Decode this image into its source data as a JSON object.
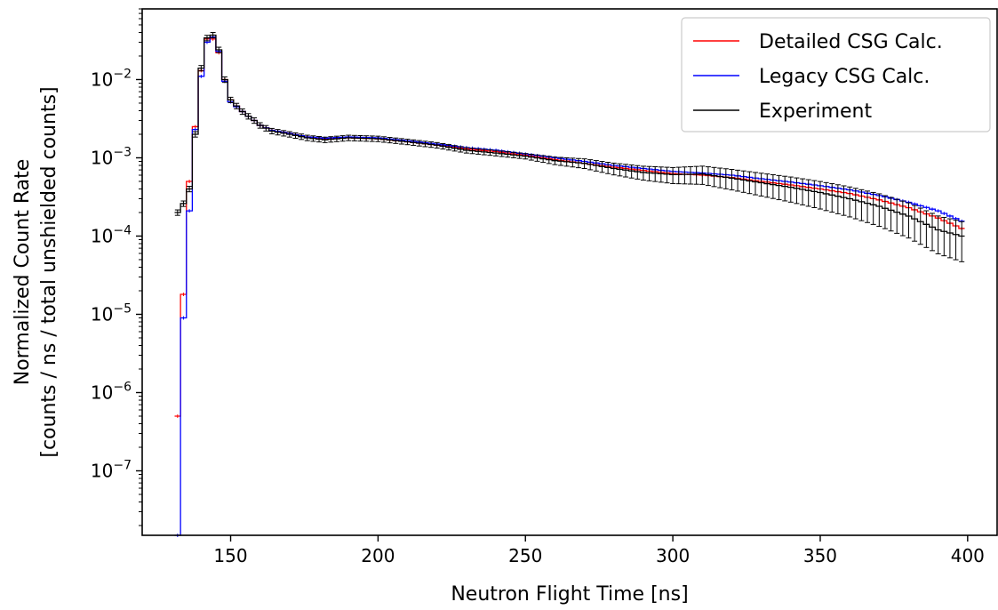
{
  "chart_data": {
    "type": "line",
    "title": "",
    "xlabel": "Neutron Flight Time [ns]",
    "ylabel": [
      "Normalized Count Rate",
      "[counts / ns / total unshielded counts]"
    ],
    "xlim": [
      120,
      410
    ],
    "ylim": [
      1.5e-08,
      0.08
    ],
    "yscale": "log",
    "grid": false,
    "legend_position": "top-right",
    "xticks": [
      150,
      200,
      250,
      300,
      350,
      400
    ],
    "yticks": [
      {
        "value": 1e-07,
        "mantissa": "10",
        "exp": "−7"
      },
      {
        "value": 1e-06,
        "mantissa": "10",
        "exp": "−6"
      },
      {
        "value": 1e-05,
        "mantissa": "10",
        "exp": "−5"
      },
      {
        "value": 0.0001,
        "mantissa": "10",
        "exp": "−4"
      },
      {
        "value": 0.001,
        "mantissa": "10",
        "exp": "−3"
      },
      {
        "value": 0.01,
        "mantissa": "10",
        "exp": "−2"
      }
    ],
    "bin_width": 2,
    "bins_start": 132,
    "bins_end": 398,
    "series": [
      {
        "name": "Detailed CSG Calc.",
        "color": "#ff0000",
        "style": "step",
        "points": [
          [
            132,
            5e-07
          ],
          [
            134,
            1.8e-05
          ],
          [
            136,
            0.0005
          ],
          [
            138,
            0.0025
          ],
          [
            140,
            0.013
          ],
          [
            142,
            0.033
          ],
          [
            144,
            0.033
          ],
          [
            146,
            0.022
          ],
          [
            148,
            0.01
          ],
          [
            150,
            0.0055
          ],
          [
            152,
            0.0046
          ],
          [
            154,
            0.0039
          ],
          [
            156,
            0.0034
          ],
          [
            158,
            0.003
          ],
          [
            160,
            0.0026
          ],
          [
            164,
            0.00225
          ],
          [
            170,
            0.00205
          ],
          [
            176,
            0.00185
          ],
          [
            182,
            0.00175
          ],
          [
            190,
            0.0018
          ],
          [
            200,
            0.00175
          ],
          [
            210,
            0.0016
          ],
          [
            220,
            0.00145
          ],
          [
            230,
            0.0013
          ],
          [
            240,
            0.0012
          ],
          [
            250,
            0.00108
          ],
          [
            260,
            0.00095
          ],
          [
            270,
            0.00085
          ],
          [
            280,
            0.00076
          ],
          [
            290,
            0.00069
          ],
          [
            300,
            0.00063
          ],
          [
            310,
            0.0006
          ],
          [
            320,
            0.00056
          ],
          [
            330,
            0.0005
          ],
          [
            340,
            0.00045
          ],
          [
            350,
            0.0004
          ],
          [
            360,
            0.00035
          ],
          [
            370,
            0.00029
          ],
          [
            380,
            0.00023
          ],
          [
            390,
            0.00017
          ],
          [
            398,
            0.000125
          ]
        ]
      },
      {
        "name": "Legacy CSG Calc.",
        "color": "#0000ff",
        "style": "step",
        "points": [
          [
            132,
            1.5e-08
          ],
          [
            134,
            9e-06
          ],
          [
            136,
            0.00021
          ],
          [
            138,
            0.0023
          ],
          [
            140,
            0.011
          ],
          [
            142,
            0.03
          ],
          [
            144,
            0.035
          ],
          [
            146,
            0.023
          ],
          [
            148,
            0.0095
          ],
          [
            150,
            0.0052
          ],
          [
            152,
            0.0045
          ],
          [
            154,
            0.0039
          ],
          [
            156,
            0.0034
          ],
          [
            158,
            0.003
          ],
          [
            160,
            0.0026
          ],
          [
            164,
            0.00225
          ],
          [
            170,
            0.00205
          ],
          [
            176,
            0.00185
          ],
          [
            182,
            0.00178
          ],
          [
            190,
            0.00185
          ],
          [
            200,
            0.0018
          ],
          [
            210,
            0.00165
          ],
          [
            220,
            0.0015
          ],
          [
            230,
            0.00135
          ],
          [
            240,
            0.00125
          ],
          [
            250,
            0.00112
          ],
          [
            260,
            0.001
          ],
          [
            270,
            0.0009
          ],
          [
            280,
            0.0008
          ],
          [
            290,
            0.00073
          ],
          [
            300,
            0.00067
          ],
          [
            310,
            0.00064
          ],
          [
            320,
            0.0006
          ],
          [
            330,
            0.00054
          ],
          [
            340,
            0.00049
          ],
          [
            350,
            0.00044
          ],
          [
            360,
            0.00039
          ],
          [
            370,
            0.00033
          ],
          [
            380,
            0.00027
          ],
          [
            390,
            0.00021
          ],
          [
            398,
            0.000155
          ]
        ]
      },
      {
        "name": "Experiment",
        "color": "#000000",
        "style": "step",
        "errorbars": true,
        "points": [
          [
            132,
            0.0002
          ],
          [
            134,
            0.00026
          ],
          [
            136,
            0.0004
          ],
          [
            138,
            0.002
          ],
          [
            140,
            0.014
          ],
          [
            142,
            0.034
          ],
          [
            144,
            0.037
          ],
          [
            146,
            0.024
          ],
          [
            148,
            0.01
          ],
          [
            150,
            0.0055
          ],
          [
            152,
            0.0046
          ],
          [
            154,
            0.0039
          ],
          [
            156,
            0.0034
          ],
          [
            158,
            0.003
          ],
          [
            160,
            0.0026
          ],
          [
            164,
            0.0022
          ],
          [
            170,
            0.002
          ],
          [
            176,
            0.0018
          ],
          [
            182,
            0.0017
          ],
          [
            190,
            0.0018
          ],
          [
            200,
            0.00175
          ],
          [
            210,
            0.0016
          ],
          [
            220,
            0.00145
          ],
          [
            230,
            0.00125
          ],
          [
            240,
            0.00115
          ],
          [
            250,
            0.00105
          ],
          [
            260,
            0.00092
          ],
          [
            270,
            0.00085
          ],
          [
            280,
            0.00073
          ],
          [
            290,
            0.00065
          ],
          [
            300,
            0.00061
          ],
          [
            310,
            0.00062
          ],
          [
            320,
            0.00055
          ],
          [
            330,
            0.00048
          ],
          [
            340,
            0.00042
          ],
          [
            350,
            0.00036
          ],
          [
            360,
            0.0003
          ],
          [
            370,
            0.00024
          ],
          [
            380,
            0.00018
          ],
          [
            390,
            0.00012
          ],
          [
            398,
            0.0001
          ]
        ]
      }
    ]
  }
}
